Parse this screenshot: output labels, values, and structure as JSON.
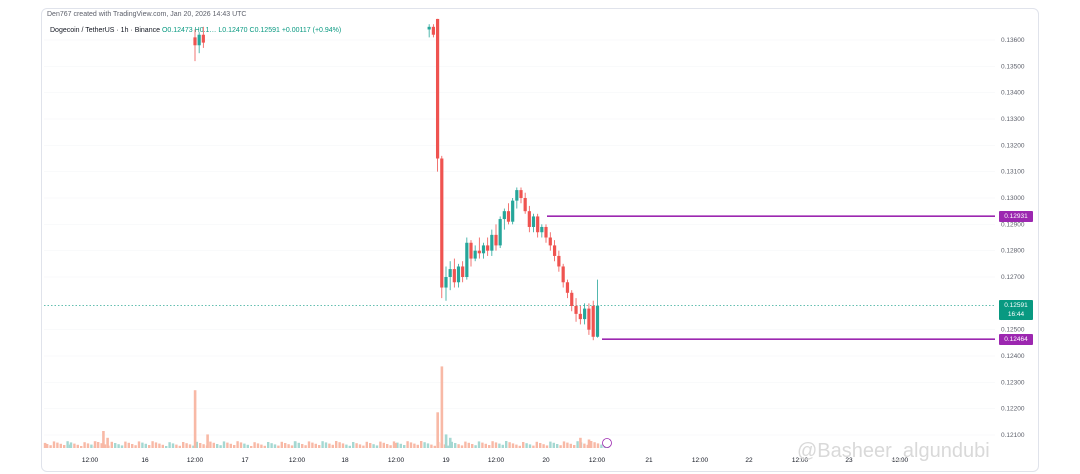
{
  "header": {
    "created_by": "Den767 created with TradingView.com, Jan 20, 2026 14:43 UTC"
  },
  "symbol_bar": {
    "symbol": "Dogecoin / TetherUS · 1h · Binance",
    "ohlc_text": "O0.12473 H0.1… L0.12470 C0.12591 +0.00117 (+0.94%)"
  },
  "watermark": {
    "text": "@Basheer_algundubi"
  },
  "colors": {
    "up": "#26a69a",
    "down": "#ef5350",
    "level_line": "#9c27b0",
    "current_price": "#089981",
    "volume_up": "#a5d8d2",
    "volume_down": "#f8b9a6"
  },
  "chart_data": {
    "type": "candlestick",
    "title": "Dogecoin / TetherUS · 1h · Binance",
    "xlabel": "",
    "ylabel": "",
    "y_ticks": [
      "0.13600",
      "0.13500",
      "0.13400",
      "0.13300",
      "0.13200",
      "0.13100",
      "0.13000",
      "0.12900",
      "0.12800",
      "0.12700",
      "0.12500",
      "0.12400",
      "0.12300",
      "0.12200",
      "0.12100"
    ],
    "ylim": [
      0.1207,
      0.1368
    ],
    "x_ticks": [
      "12:00",
      "16",
      "12:00",
      "17",
      "12:00",
      "18",
      "12:00",
      "19",
      "12:00",
      "20",
      "12:00",
      "21",
      "12:00",
      "22",
      "12:00",
      "23",
      "12:00"
    ],
    "horizontal_levels": [
      {
        "value": 0.12931,
        "label": "0.12931"
      },
      {
        "value": 0.12464,
        "label": "0.12464"
      }
    ],
    "current_price": {
      "value": 0.12591,
      "label": "0.12591",
      "countdown": "16:44"
    },
    "candles": [
      {
        "t": "16 12:00",
        "o": 0.1361,
        "h": 0.1364,
        "l": 0.1352,
        "c": 0.1358
      },
      {
        "t": "16 13:00",
        "o": 0.1358,
        "h": 0.1363,
        "l": 0.1355,
        "c": 0.1362
      },
      {
        "t": "16 14:00",
        "o": 0.1362,
        "h": 0.1365,
        "l": 0.1357,
        "c": 0.1359
      },
      {
        "t": "18 20:00",
        "o": 0.1364,
        "h": 0.1366,
        "l": 0.1361,
        "c": 0.1365
      },
      {
        "t": "18 21:00",
        "o": 0.1365,
        "h": 0.1366,
        "l": 0.1361,
        "c": 0.1362
      },
      {
        "t": "18 22:00",
        "o": 0.1368,
        "h": 0.1368,
        "l": 0.131,
        "c": 0.1315
      },
      {
        "t": "18 23:00",
        "o": 0.1315,
        "h": 0.1316,
        "l": 0.1262,
        "c": 0.1266
      },
      {
        "t": "19 00:00",
        "o": 0.1266,
        "h": 0.1274,
        "l": 0.1261,
        "c": 0.127
      },
      {
        "t": "19 01:00",
        "o": 0.127,
        "h": 0.1276,
        "l": 0.1265,
        "c": 0.1273
      },
      {
        "t": "19 02:00",
        "o": 0.1273,
        "h": 0.1277,
        "l": 0.1266,
        "c": 0.1268
      },
      {
        "t": "19 03:00",
        "o": 0.1268,
        "h": 0.1275,
        "l": 0.1266,
        "c": 0.1274
      },
      {
        "t": "19 04:00",
        "o": 0.1274,
        "h": 0.1276,
        "l": 0.1268,
        "c": 0.127
      },
      {
        "t": "19 05:00",
        "o": 0.127,
        "h": 0.1285,
        "l": 0.1269,
        "c": 0.1283
      },
      {
        "t": "19 06:00",
        "o": 0.1283,
        "h": 0.1284,
        "l": 0.1274,
        "c": 0.1277
      },
      {
        "t": "19 07:00",
        "o": 0.1277,
        "h": 0.1282,
        "l": 0.1276,
        "c": 0.128
      },
      {
        "t": "19 08:00",
        "o": 0.128,
        "h": 0.1285,
        "l": 0.1277,
        "c": 0.1279
      },
      {
        "t": "19 09:00",
        "o": 0.1279,
        "h": 0.1283,
        "l": 0.1277,
        "c": 0.1282
      },
      {
        "t": "19 10:00",
        "o": 0.1282,
        "h": 0.1285,
        "l": 0.1278,
        "c": 0.128
      },
      {
        "t": "19 11:00",
        "o": 0.128,
        "h": 0.1288,
        "l": 0.1278,
        "c": 0.1286
      },
      {
        "t": "19 12:00",
        "o": 0.1286,
        "h": 0.129,
        "l": 0.128,
        "c": 0.1282
      },
      {
        "t": "19 13:00",
        "o": 0.1282,
        "h": 0.1293,
        "l": 0.1281,
        "c": 0.1292
      },
      {
        "t": "19 14:00",
        "o": 0.1292,
        "h": 0.1296,
        "l": 0.1288,
        "c": 0.1295
      },
      {
        "t": "19 15:00",
        "o": 0.1295,
        "h": 0.1298,
        "l": 0.129,
        "c": 0.1291
      },
      {
        "t": "19 16:00",
        "o": 0.1291,
        "h": 0.13,
        "l": 0.129,
        "c": 0.1299
      },
      {
        "t": "19 17:00",
        "o": 0.1299,
        "h": 0.1304,
        "l": 0.1296,
        "c": 0.1303
      },
      {
        "t": "19 18:00",
        "o": 0.1303,
        "h": 0.1304,
        "l": 0.1298,
        "c": 0.13
      },
      {
        "t": "19 19:00",
        "o": 0.13,
        "h": 0.1302,
        "l": 0.1294,
        "c": 0.1295
      },
      {
        "t": "19 20:00",
        "o": 0.1295,
        "h": 0.1297,
        "l": 0.1287,
        "c": 0.1289
      },
      {
        "t": "19 21:00",
        "o": 0.1289,
        "h": 0.1294,
        "l": 0.1287,
        "c": 0.1293
      },
      {
        "t": "19 22:00",
        "o": 0.1293,
        "h": 0.1294,
        "l": 0.1285,
        "c": 0.1287
      },
      {
        "t": "19 23:00",
        "o": 0.1287,
        "h": 0.129,
        "l": 0.1285,
        "c": 0.1289
      },
      {
        "t": "20 00:00",
        "o": 0.1289,
        "h": 0.129,
        "l": 0.1283,
        "c": 0.1285
      },
      {
        "t": "20 01:00",
        "o": 0.1285,
        "h": 0.1287,
        "l": 0.128,
        "c": 0.1282
      },
      {
        "t": "20 02:00",
        "o": 0.1282,
        "h": 0.1284,
        "l": 0.1276,
        "c": 0.1278
      },
      {
        "t": "20 03:00",
        "o": 0.1278,
        "h": 0.128,
        "l": 0.1272,
        "c": 0.1274
      },
      {
        "t": "20 04:00",
        "o": 0.1274,
        "h": 0.1275,
        "l": 0.1266,
        "c": 0.1268
      },
      {
        "t": "20 05:00",
        "o": 0.1268,
        "h": 0.1269,
        "l": 0.1262,
        "c": 0.1264
      },
      {
        "t": "20 06:00",
        "o": 0.1264,
        "h": 0.1265,
        "l": 0.1257,
        "c": 0.1259
      },
      {
        "t": "20 07:00",
        "o": 0.1259,
        "h": 0.1262,
        "l": 0.1253,
        "c": 0.1256
      },
      {
        "t": "20 08:00",
        "o": 0.1256,
        "h": 0.1259,
        "l": 0.1252,
        "c": 0.1254
      },
      {
        "t": "20 09:00",
        "o": 0.1254,
        "h": 0.126,
        "l": 0.1252,
        "c": 0.1258
      },
      {
        "t": "20 10:00",
        "o": 0.1258,
        "h": 0.126,
        "l": 0.1248,
        "c": 0.125
      },
      {
        "t": "20 11:00",
        "o": 0.1259,
        "h": 0.1261,
        "l": 0.1246,
        "c": 0.12473
      },
      {
        "t": "20 12:00",
        "o": 0.12473,
        "h": 0.1269,
        "l": 0.1247,
        "c": 0.12591
      }
    ],
    "volume": [
      {
        "t": "15 00:00",
        "v": 3,
        "up": false
      },
      {
        "t": "15 06:00",
        "v": 2,
        "up": true
      },
      {
        "t": "15 12:00",
        "v": 4,
        "up": false
      },
      {
        "t": "15 14:00",
        "v": 10,
        "up": false
      },
      {
        "t": "15 15:00",
        "v": 6,
        "up": false
      },
      {
        "t": "16 12:00",
        "v": 34,
        "up": false
      },
      {
        "t": "16 15:00",
        "v": 8,
        "up": false
      },
      {
        "t": "17 12:00",
        "v": 4,
        "up": true
      },
      {
        "t": "18 12:00",
        "v": 3,
        "up": false
      },
      {
        "t": "18 22:00",
        "v": 21,
        "up": false
      },
      {
        "t": "18 23:00",
        "v": 48,
        "up": false
      },
      {
        "t": "19 00:00",
        "v": 8,
        "up": true
      },
      {
        "t": "19 01:00",
        "v": 6,
        "up": true
      },
      {
        "t": "20 08:00",
        "v": 6,
        "up": false
      },
      {
        "t": "20 10:00",
        "v": 5,
        "up": false
      }
    ]
  }
}
